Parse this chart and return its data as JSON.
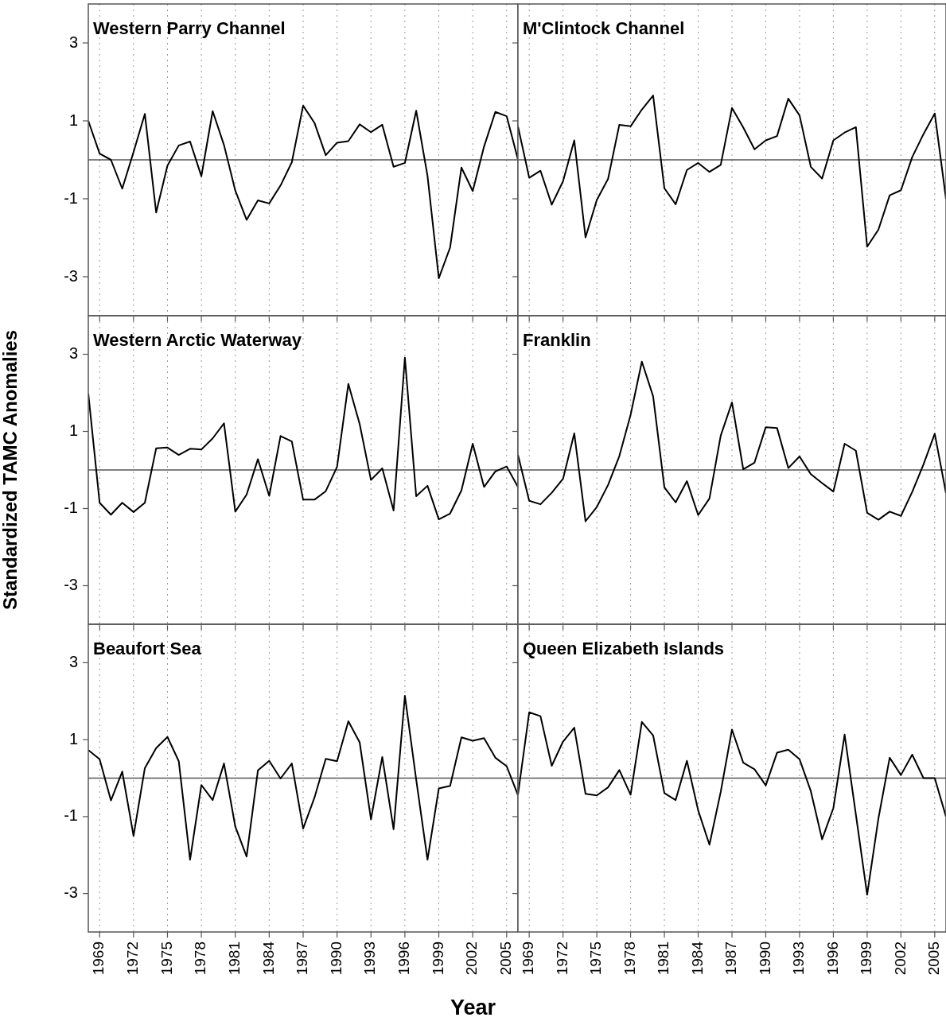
{
  "chart_data": [
    {
      "type": "line",
      "title": "Western Parry Channel",
      "x": [
        1968,
        1969,
        1970,
        1971,
        1972,
        1973,
        1974,
        1975,
        1976,
        1977,
        1978,
        1979,
        1980,
        1981,
        1982,
        1983,
        1984,
        1985,
        1986,
        1987,
        1988,
        1989,
        1990,
        1991,
        1992,
        1993,
        1994,
        1995,
        1996,
        1997,
        1998,
        1999,
        2000,
        2001,
        2002,
        2003,
        2004,
        2005,
        2006
      ],
      "values": [
        1.0,
        0.16,
        0.0,
        -0.74,
        0.2,
        1.18,
        -1.35,
        -0.15,
        0.37,
        0.47,
        -0.42,
        1.25,
        0.38,
        -0.79,
        -1.54,
        -1.04,
        -1.12,
        -0.66,
        -0.06,
        1.39,
        0.95,
        0.12,
        0.44,
        0.48,
        0.91,
        0.71,
        0.9,
        -0.18,
        -0.08,
        1.26,
        -0.41,
        -3.04,
        -2.25,
        -0.2,
        -0.8,
        0.34,
        1.23,
        1.12,
        0.01
      ],
      "color": "#000000",
      "xlim": [
        1968,
        2006
      ],
      "xticks": [
        1969,
        1972,
        1975,
        1978,
        1981,
        1984,
        1987,
        1990,
        1993,
        1996,
        1999,
        2002,
        2005
      ],
      "ylim": [
        -4,
        4
      ],
      "yticks": [
        -3,
        -1,
        1,
        3
      ],
      "grid": "x",
      "ref_lines": [
        {
          "axis": "y",
          "value": 0,
          "color": "#555555"
        }
      ],
      "tick_labels": "y"
    },
    {
      "type": "line",
      "title": "M'Clintock Channel",
      "x": [
        1968,
        1969,
        1970,
        1971,
        1972,
        1973,
        1974,
        1975,
        1976,
        1977,
        1978,
        1979,
        1980,
        1981,
        1982,
        1983,
        1984,
        1985,
        1986,
        1987,
        1988,
        1989,
        1990,
        1991,
        1992,
        1993,
        1994,
        1995,
        1996,
        1997,
        1998,
        1999,
        2000,
        2001,
        2002,
        2003,
        2004,
        2005,
        2006
      ],
      "values": [
        0.86,
        -0.46,
        -0.28,
        -1.15,
        -0.55,
        0.5,
        -1.99,
        -1.03,
        -0.49,
        0.9,
        0.86,
        1.29,
        1.65,
        -0.73,
        -1.14,
        -0.26,
        -0.08,
        -0.31,
        -0.13,
        1.33,
        0.83,
        0.27,
        0.5,
        0.61,
        1.57,
        1.14,
        -0.18,
        -0.48,
        0.5,
        0.7,
        0.84,
        -2.23,
        -1.79,
        -0.91,
        -0.78,
        0.07,
        0.66,
        1.19,
        -1.0
      ],
      "color": "#000000",
      "xlim": [
        1968,
        2006
      ],
      "xticks": [
        1969,
        1972,
        1975,
        1978,
        1981,
        1984,
        1987,
        1990,
        1993,
        1996,
        1999,
        2002,
        2005
      ],
      "ylim": [
        -4,
        4
      ],
      "yticks": [
        -3,
        -1,
        1,
        3
      ],
      "grid": "x",
      "ref_lines": [
        {
          "axis": "y",
          "value": 0,
          "color": "#555555"
        }
      ],
      "tick_labels": false
    },
    {
      "type": "line",
      "title": "Western Arctic Waterway",
      "ylabel": "Standardized TAMC Anomalies",
      "x": [
        1968,
        1969,
        1970,
        1971,
        1972,
        1973,
        1974,
        1975,
        1976,
        1977,
        1978,
        1979,
        1980,
        1981,
        1982,
        1983,
        1984,
        1985,
        1986,
        1987,
        1988,
        1989,
        1990,
        1991,
        1992,
        1993,
        1994,
        1995,
        1996,
        1997,
        1998,
        1999,
        2000,
        2001,
        2002,
        2003,
        2004,
        2005,
        2006
      ],
      "values": [
        1.98,
        -0.85,
        -1.16,
        -0.85,
        -1.09,
        -0.85,
        0.56,
        0.58,
        0.39,
        0.55,
        0.53,
        0.82,
        1.21,
        -1.08,
        -0.64,
        0.28,
        -0.67,
        0.88,
        0.74,
        -0.77,
        -0.77,
        -0.55,
        0.08,
        2.23,
        1.19,
        -0.26,
        0.04,
        -1.05,
        2.91,
        -0.68,
        -0.41,
        -1.28,
        -1.13,
        -0.53,
        0.68,
        -0.44,
        -0.04,
        0.09,
        -0.44
      ],
      "color": "#000000",
      "xlim": [
        1968,
        2006
      ],
      "xticks": [
        1969,
        1972,
        1975,
        1978,
        1981,
        1984,
        1987,
        1990,
        1993,
        1996,
        1999,
        2002,
        2005
      ],
      "ylim": [
        -4,
        4
      ],
      "yticks": [
        -3,
        -1,
        1,
        3
      ],
      "grid": "x",
      "ref_lines": [
        {
          "axis": "y",
          "value": 0,
          "color": "#555555"
        }
      ],
      "tick_labels": "y"
    },
    {
      "type": "line",
      "title": "Franklin",
      "x": [
        1968,
        1969,
        1970,
        1971,
        1972,
        1973,
        1974,
        1975,
        1976,
        1977,
        1978,
        1979,
        1980,
        1981,
        1982,
        1983,
        1984,
        1985,
        1986,
        1987,
        1988,
        1989,
        1990,
        1991,
        1992,
        1993,
        1994,
        1995,
        1996,
        1997,
        1998,
        1999,
        2000,
        2001,
        2002,
        2003,
        2004,
        2005,
        2006
      ],
      "values": [
        0.39,
        -0.8,
        -0.89,
        -0.59,
        -0.23,
        0.95,
        -1.33,
        -0.96,
        -0.39,
        0.36,
        1.43,
        2.81,
        1.91,
        -0.45,
        -0.84,
        -0.29,
        -1.17,
        -0.74,
        0.89,
        1.75,
        0.02,
        0.19,
        1.11,
        1.09,
        0.05,
        0.35,
        -0.11,
        -0.34,
        -0.56,
        0.68,
        0.5,
        -1.11,
        -1.29,
        -1.08,
        -1.19,
        -0.57,
        0.14,
        0.94,
        -0.6
      ],
      "color": "#000000",
      "xlim": [
        1968,
        2006
      ],
      "xticks": [
        1969,
        1972,
        1975,
        1978,
        1981,
        1984,
        1987,
        1990,
        1993,
        1996,
        1999,
        2002,
        2005
      ],
      "ylim": [
        -4,
        4
      ],
      "yticks": [
        -3,
        -1,
        1,
        3
      ],
      "grid": "x",
      "ref_lines": [
        {
          "axis": "y",
          "value": 0,
          "color": "#555555"
        }
      ],
      "tick_labels": false
    },
    {
      "type": "line",
      "title": "Beaufort Sea",
      "xlabel": "Year",
      "x": [
        1968,
        1969,
        1970,
        1971,
        1972,
        1973,
        1974,
        1975,
        1976,
        1977,
        1978,
        1979,
        1980,
        1981,
        1982,
        1983,
        1984,
        1985,
        1986,
        1987,
        1988,
        1989,
        1990,
        1991,
        1992,
        1993,
        1994,
        1995,
        1996,
        1997,
        1998,
        1999,
        2000,
        2001,
        2002,
        2003,
        2004,
        2005,
        2006
      ],
      "values": [
        0.73,
        0.49,
        -0.58,
        0.17,
        -1.5,
        0.26,
        0.78,
        1.07,
        0.44,
        -2.12,
        -0.18,
        -0.57,
        0.38,
        -1.26,
        -2.04,
        0.2,
        0.45,
        -0.01,
        0.38,
        -1.31,
        -0.51,
        0.5,
        0.44,
        1.48,
        0.93,
        -1.07,
        0.55,
        -1.33,
        2.14,
        -0.04,
        -2.12,
        -0.27,
        -0.2,
        1.06,
        0.97,
        1.04,
        0.53,
        0.31,
        -0.44
      ],
      "color": "#000000",
      "xlim": [
        1968,
        2006
      ],
      "xticks": [
        1969,
        1972,
        1975,
        1978,
        1981,
        1984,
        1987,
        1990,
        1993,
        1996,
        1999,
        2002,
        2005
      ],
      "ylim": [
        -4,
        4
      ],
      "yticks": [
        -3,
        -1,
        1,
        3
      ],
      "grid": "x",
      "ref_lines": [
        {
          "axis": "y",
          "value": 0,
          "color": "#555555"
        }
      ]
    },
    {
      "type": "line",
      "title": "Queen Elizabeth Islands",
      "x": [
        1968,
        1969,
        1970,
        1971,
        1972,
        1973,
        1974,
        1975,
        1976,
        1977,
        1978,
        1979,
        1980,
        1981,
        1982,
        1983,
        1984,
        1985,
        1986,
        1987,
        1988,
        1989,
        1990,
        1991,
        1992,
        1993,
        1994,
        1995,
        1996,
        1997,
        1998,
        1999,
        2000,
        2001,
        2002,
        2003,
        2004,
        2005,
        2006
      ],
      "values": [
        -0.43,
        1.71,
        1.61,
        0.32,
        0.95,
        1.31,
        -0.41,
        -0.45,
        -0.24,
        0.21,
        -0.43,
        1.46,
        1.11,
        -0.39,
        -0.57,
        0.45,
        -0.84,
        -1.73,
        -0.36,
        1.26,
        0.4,
        0.23,
        -0.19,
        0.66,
        0.74,
        0.49,
        -0.34,
        -1.59,
        -0.78,
        1.13,
        -0.95,
        -3.03,
        -1.05,
        0.53,
        0.08,
        0.61,
        0.0,
        0.0,
        -1.0
      ],
      "color": "#000000",
      "xlim": [
        1968,
        2006
      ],
      "xticks": [
        1969,
        1972,
        1975,
        1978,
        1981,
        1984,
        1987,
        1990,
        1993,
        1996,
        1999,
        2002,
        2005
      ],
      "ylim": [
        -4,
        4
      ],
      "yticks": [
        -3,
        -1,
        1,
        3
      ],
      "grid": "x",
      "ref_lines": [
        {
          "axis": "y",
          "value": 0,
          "color": "#555555"
        }
      ],
      "tick_labels": "x"
    }
  ]
}
